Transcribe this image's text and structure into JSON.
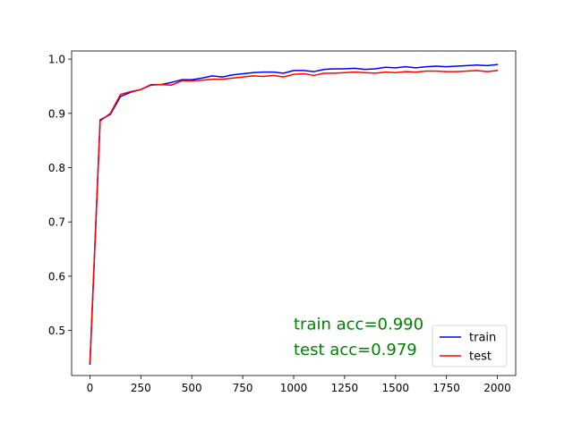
{
  "chart_data": {
    "type": "line",
    "title": "",
    "xlabel": "",
    "ylabel": "",
    "xlim": [
      -90,
      2090
    ],
    "ylim": [
      0.417,
      1.015
    ],
    "xticks": [
      0,
      250,
      500,
      750,
      1000,
      1250,
      1500,
      1750,
      2000
    ],
    "yticks": [
      0.5,
      0.6,
      0.7,
      0.8,
      0.9,
      1.0
    ],
    "xtick_labels": [
      "0",
      "250",
      "500",
      "750",
      "1000",
      "1250",
      "1500",
      "1750",
      "2000"
    ],
    "ytick_labels": [
      "0.5",
      "0.6",
      "0.7",
      "0.8",
      "0.9",
      "1.0"
    ],
    "grid": false,
    "legend_position": "bottom-right",
    "x": [
      0,
      50,
      100,
      150,
      200,
      250,
      300,
      350,
      400,
      450,
      500,
      550,
      600,
      650,
      700,
      750,
      800,
      850,
      900,
      950,
      1000,
      1050,
      1100,
      1150,
      1200,
      1250,
      1300,
      1350,
      1400,
      1450,
      1500,
      1550,
      1600,
      1650,
      1700,
      1750,
      1800,
      1850,
      1900,
      1950,
      2000
    ],
    "series": [
      {
        "name": "train",
        "color": "#0000ff",
        "values": [
          0.438,
          0.888,
          0.898,
          0.931,
          0.939,
          0.944,
          0.953,
          0.953,
          0.957,
          0.962,
          0.962,
          0.965,
          0.969,
          0.967,
          0.971,
          0.973,
          0.975,
          0.976,
          0.976,
          0.974,
          0.979,
          0.979,
          0.977,
          0.981,
          0.982,
          0.982,
          0.983,
          0.981,
          0.982,
          0.985,
          0.984,
          0.986,
          0.984,
          0.986,
          0.987,
          0.986,
          0.987,
          0.988,
          0.989,
          0.988,
          0.99
        ]
      },
      {
        "name": "test",
        "color": "#ff0000",
        "values": [
          0.442,
          0.886,
          0.9,
          0.935,
          0.94,
          0.944,
          0.952,
          0.953,
          0.952,
          0.96,
          0.96,
          0.961,
          0.963,
          0.963,
          0.965,
          0.967,
          0.969,
          0.968,
          0.97,
          0.967,
          0.972,
          0.973,
          0.97,
          0.974,
          0.974,
          0.975,
          0.976,
          0.975,
          0.974,
          0.976,
          0.975,
          0.977,
          0.976,
          0.978,
          0.978,
          0.977,
          0.977,
          0.978,
          0.979,
          0.977,
          0.979
        ]
      }
    ],
    "annotations": [
      {
        "text": "train acc=0.990",
        "x": 1000,
        "y": 0.502,
        "color": "#008000"
      },
      {
        "text": "test acc=0.979",
        "x": 1000,
        "y": 0.455,
        "color": "#008000"
      }
    ]
  }
}
